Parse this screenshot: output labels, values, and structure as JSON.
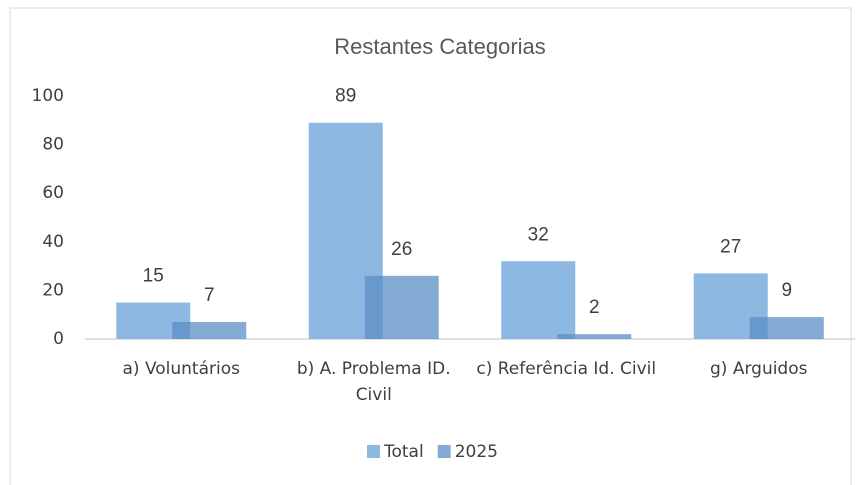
{
  "chart_data": {
    "type": "bar",
    "title": "Restantes Categorias",
    "categories": [
      "a) Voluntários",
      "b) A. Problema ID. Civil",
      "c) Referência Id. Civil",
      "g) Arguidos"
    ],
    "series": [
      {
        "name": "Total",
        "color": "#8db8e2",
        "values": [
          15,
          89,
          32,
          27
        ]
      },
      {
        "name": "2025",
        "color": "#5b8fc4",
        "values": [
          7,
          26,
          2,
          9
        ]
      }
    ],
    "ylim": [
      0,
      100
    ],
    "yticks": [
      0,
      20,
      40,
      60,
      80,
      100
    ],
    "grid": false,
    "legend": "bottom"
  }
}
